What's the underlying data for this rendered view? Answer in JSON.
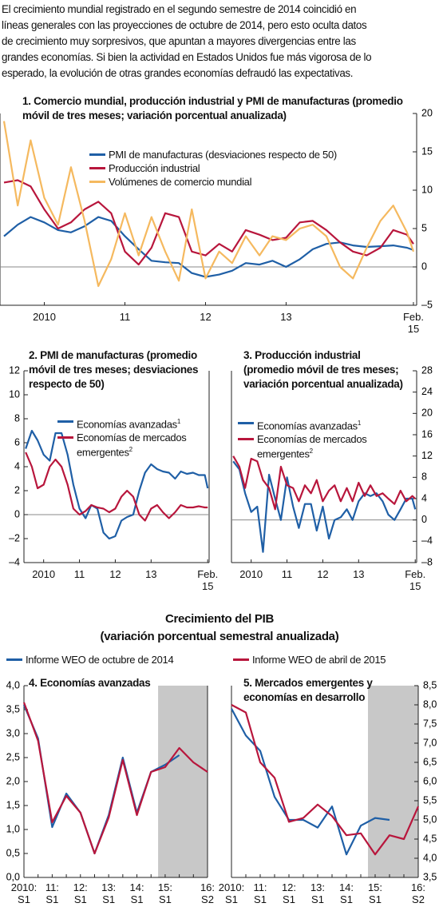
{
  "intro": [
    "El crecimiento mundial registrado en el segundo semestre de 2014 coincidió en",
    "líneas generales con las proyecciones de octubre de 2014, pero esto oculta datos",
    "de crecimiento muy sorpresivos, que apuntan a mayores divergencias entre las",
    "grandes economías. Si bien la actividad en Estados Unidos fue más vigorosa de lo",
    "esperado, la evolución de otras grandes economías defraudó las expectativas."
  ],
  "gdp_section": {
    "title": "Crecimiento del PIB",
    "subtitle": "(variación porcentual semestral anualizada)"
  },
  "chart_data": [
    {
      "type": "line",
      "title": "1. Comercio mundial, producción industrial y PMI de manufacturas",
      "subtitle": "(promedio móvil de tres meses; variación porcentual anualizada)",
      "x": [
        2010,
        2010.17,
        2010.33,
        2010.5,
        2010.67,
        2010.83,
        2011,
        2011.17,
        2011.33,
        2011.5,
        2011.67,
        2011.83,
        2012,
        2012.17,
        2012.33,
        2012.5,
        2012.67,
        2012.83,
        2013,
        2013.17,
        2013.33,
        2013.5,
        2013.67,
        2013.83,
        2014,
        2014.17,
        2014.33,
        2014.5,
        2014.67,
        2014.83,
        2015,
        2015.08
      ],
      "xlim": [
        2009.95,
        2015.12
      ],
      "xticks": [
        {
          "value": 2010.5,
          "label": "2010"
        },
        {
          "value": 2011.5,
          "label": "11"
        },
        {
          "value": 2012.5,
          "label": "12"
        },
        {
          "value": 2013.5,
          "label": "13"
        },
        {
          "value": 2015.08,
          "label": "Feb. 15"
        }
      ],
      "ylim": [
        -5,
        20
      ],
      "yticks": [
        {
          "value": -5,
          "label": "–5"
        },
        0,
        5,
        10,
        15,
        20
      ],
      "axis_side": "right",
      "zero_line": true,
      "series": [
        {
          "name": "PMI de manufacturas (desviaciones respecto de 50)",
          "color": "#1f5fa6",
          "values": [
            4.0,
            5.5,
            6.5,
            5.8,
            4.8,
            4.5,
            5.3,
            6.5,
            6.0,
            4.0,
            2.3,
            0.8,
            0.6,
            0.5,
            -0.8,
            -1.3,
            -1.0,
            -0.5,
            0.5,
            0.3,
            0.8,
            0.0,
            1.0,
            2.3,
            3.0,
            3.2,
            2.8,
            2.6,
            2.7,
            2.8,
            2.5,
            2.2
          ]
        },
        {
          "name": "Producción industrial",
          "color": "#b8163c",
          "values": [
            11,
            11.3,
            10.5,
            7.5,
            5,
            5.8,
            7.5,
            8.5,
            7.0,
            2.0,
            0.3,
            2.5,
            7.0,
            6.5,
            2.0,
            1.5,
            3.0,
            2.0,
            4.8,
            4.2,
            3.5,
            3.8,
            5.8,
            6.0,
            4.8,
            3.2,
            2.0,
            1.5,
            2.5,
            4.8,
            4.2,
            3.0
          ]
        },
        {
          "name": "Volúmenes de comercio mundial",
          "color": "#f5b95f",
          "values": [
            19,
            8,
            16.5,
            9,
            5.5,
            13,
            6,
            -2.5,
            1.0,
            7.0,
            1.5,
            6.5,
            2.0,
            -1.8,
            7.5,
            -1.5,
            2.0,
            0.5,
            4.0,
            1.5,
            4.0,
            3.5,
            5.0,
            5.5,
            4.0,
            0.0,
            -1.5,
            2.5,
            6.0,
            8.0,
            4.5,
            2.0
          ]
        }
      ]
    },
    {
      "type": "line",
      "title": "2. PMI de manufacturas",
      "subtitle": "(promedio móvil de tres meses; desviaciones respecto de 50)",
      "x": [
        2010,
        2010.17,
        2010.33,
        2010.5,
        2010.67,
        2010.83,
        2011,
        2011.17,
        2011.33,
        2011.5,
        2011.67,
        2011.83,
        2012,
        2012.17,
        2012.33,
        2012.5,
        2012.67,
        2012.83,
        2013,
        2013.17,
        2013.33,
        2013.5,
        2013.67,
        2013.83,
        2014,
        2014.17,
        2014.33,
        2014.5,
        2014.67,
        2014.83,
        2015,
        2015.08
      ],
      "xlim": [
        2009.95,
        2015.12
      ],
      "xticks": [
        {
          "value": 2010.5,
          "label": "2010"
        },
        {
          "value": 2011.5,
          "label": "11"
        },
        {
          "value": 2012.5,
          "label": "12"
        },
        {
          "value": 2013.5,
          "label": "13"
        },
        {
          "value": 2015.08,
          "label": "Feb. 15"
        }
      ],
      "ylim": [
        -4,
        12
      ],
      "yticks": [
        {
          "value": -4,
          "label": "–4"
        },
        {
          "value": -2,
          "label": "–2"
        },
        0,
        2,
        4,
        6,
        8,
        10,
        12
      ],
      "axis_side": "left",
      "zero_line": true,
      "series": [
        {
          "name": "Economías avanzadas",
          "footnote": "1",
          "color": "#1f5fa6",
          "values": [
            5.5,
            7.0,
            6.2,
            5.0,
            4.5,
            6.8,
            6.8,
            5.0,
            2.5,
            0.5,
            -0.3,
            0.8,
            0.5,
            -1.5,
            -2.0,
            -1.8,
            -0.5,
            -0.2,
            0.0,
            2.0,
            3.5,
            4.2,
            3.8,
            3.6,
            3.5,
            3.0,
            3.6,
            3.4,
            3.5,
            3.3,
            3.3,
            2.2
          ]
        },
        {
          "name": "Economías de mercados emergentes",
          "footnote": "2",
          "color": "#b8163c",
          "values": [
            5.2,
            4.0,
            2.2,
            2.5,
            4.0,
            4.6,
            4.0,
            2.5,
            0.5,
            0.0,
            0.3,
            0.8,
            0.6,
            0.5,
            0.2,
            0.5,
            1.5,
            2.0,
            1.5,
            0.0,
            -0.5,
            0.5,
            0.8,
            0.2,
            -0.3,
            0.2,
            0.8,
            0.6,
            0.6,
            0.7,
            0.6,
            0.6
          ]
        }
      ]
    },
    {
      "type": "line",
      "title": "3. Producción industrial",
      "subtitle": "(promedio móvil de tres meses; variación porcentual anualizada)",
      "x": [
        2010,
        2010.17,
        2010.33,
        2010.5,
        2010.67,
        2010.83,
        2011,
        2011.17,
        2011.33,
        2011.5,
        2011.67,
        2011.83,
        2012,
        2012.17,
        2012.33,
        2012.5,
        2012.67,
        2012.83,
        2013,
        2013.17,
        2013.33,
        2013.5,
        2013.67,
        2013.83,
        2014,
        2014.17,
        2014.33,
        2014.5,
        2014.67,
        2014.83,
        2015,
        2015.08
      ],
      "xlim": [
        2009.95,
        2015.12
      ],
      "xticks": [
        {
          "value": 2010.5,
          "label": "2010"
        },
        {
          "value": 2011.5,
          "label": "11"
        },
        {
          "value": 2012.5,
          "label": "12"
        },
        {
          "value": 2013.5,
          "label": "13"
        },
        {
          "value": 2015.08,
          "label": "Feb. 15"
        }
      ],
      "ylim": [
        -8,
        28
      ],
      "yticks": [
        {
          "value": -8,
          "label": "–8"
        },
        {
          "value": -4,
          "label": "–4"
        },
        0,
        4,
        8,
        12,
        16,
        20,
        24,
        28
      ],
      "axis_side": "right",
      "zero_line": true,
      "series": [
        {
          "name": "Economías avanzadas",
          "footnote": "1",
          "color": "#1f5fa6",
          "values": [
            11,
            9.5,
            5.0,
            1.5,
            2.5,
            -6.0,
            8.5,
            4.0,
            0.0,
            8.0,
            2.5,
            -1.5,
            3.0,
            3.0,
            -2.0,
            2.5,
            -3.5,
            0.0,
            0.5,
            2.0,
            0.0,
            3.5,
            5.0,
            4.5,
            5.0,
            3.5,
            1.0,
            0.0,
            2.0,
            4.0,
            4.0,
            2.0
          ]
        },
        {
          "name": "Economías de mercados emergentes",
          "footnote": "2",
          "color": "#b8163c",
          "values": [
            12,
            10.0,
            6.0,
            11.5,
            11.0,
            7.5,
            6.0,
            2.0,
            10.0,
            6.5,
            6.0,
            3.5,
            6.5,
            5.0,
            7.5,
            3.5,
            5.5,
            6.5,
            3.5,
            6.0,
            3.5,
            7.0,
            4.5,
            6.5,
            4.5,
            5.0,
            4.0,
            3.0,
            5.5,
            3.5,
            4.5,
            4.0
          ]
        }
      ]
    },
    {
      "type": "line",
      "title": "4. Economías avanzadas",
      "categories": [
        "2010: S1",
        null,
        "11: S1",
        null,
        "12: S1",
        null,
        "13: S1",
        null,
        "14: S1",
        null,
        "15: S1",
        null,
        null,
        "16: S2"
      ],
      "shaded_from": "15: S1",
      "ylim": [
        0,
        4
      ],
      "yticks": [
        {
          "value": 0,
          "label": "0,0"
        },
        {
          "value": 0.5,
          "label": "0,5"
        },
        {
          "value": 1,
          "label": "1,0"
        },
        {
          "value": 1.5,
          "label": "1,5"
        },
        {
          "value": 2,
          "label": "2,0"
        },
        {
          "value": 2.5,
          "label": "2,5"
        },
        {
          "value": 3,
          "label": "3,0"
        },
        {
          "value": 3.5,
          "label": "3,5"
        },
        {
          "value": 4,
          "label": "4,0"
        }
      ],
      "axis_side": "left",
      "series": [
        {
          "name": "Informe WEO de octubre de 2014",
          "color": "#1f5fa6",
          "values": [
            3.6,
            2.9,
            1.05,
            1.75,
            1.35,
            0.5,
            1.3,
            2.5,
            1.35,
            2.2,
            2.35,
            2.55,
            null,
            null
          ]
        },
        {
          "color": "#b8163c",
          "values": [
            3.65,
            2.85,
            1.15,
            1.7,
            1.35,
            0.5,
            1.25,
            2.45,
            1.3,
            2.2,
            2.3,
            2.7,
            2.4,
            2.2
          ]
        }
      ]
    },
    {
      "type": "line",
      "title": "5. Mercados emergentes y economías en desarrollo",
      "categories": [
        "2010: S1",
        null,
        "11: S1",
        null,
        "12: S1",
        null,
        "13: S1",
        null,
        "14: S1",
        null,
        "15: S1",
        null,
        null,
        "16: S2"
      ],
      "shaded_from": "15: S1",
      "ylim": [
        3.5,
        8.5
      ],
      "yticks": [
        {
          "value": 3.5,
          "label": "3,5"
        },
        {
          "value": 4,
          "label": "4,0"
        },
        {
          "value": 4.5,
          "label": "4,5"
        },
        {
          "value": 5,
          "label": "5,0"
        },
        {
          "value": 5.5,
          "label": "5,5"
        },
        {
          "value": 6,
          "label": "6,0"
        },
        {
          "value": 6.5,
          "label": "6,5"
        },
        {
          "value": 7,
          "label": "7,0"
        },
        {
          "value": 7.5,
          "label": "7,5"
        },
        {
          "value": 8,
          "label": "8,0"
        },
        {
          "value": 8.5,
          "label": "8,5"
        }
      ],
      "axis_side": "right",
      "series": [
        {
          "color": "#1f5fa6",
          "values": [
            7.9,
            7.2,
            6.8,
            5.6,
            5.0,
            5.0,
            4.8,
            5.35,
            4.1,
            4.85,
            5.05,
            5.0,
            null,
            null
          ]
        },
        {
          "name": "Informe WEO de abril de 2015",
          "color": "#b8163c",
          "values": [
            8.0,
            7.8,
            6.5,
            6.1,
            4.95,
            5.05,
            5.4,
            5.1,
            4.6,
            4.65,
            4.1,
            4.6,
            4.5,
            5.35
          ]
        }
      ]
    }
  ]
}
